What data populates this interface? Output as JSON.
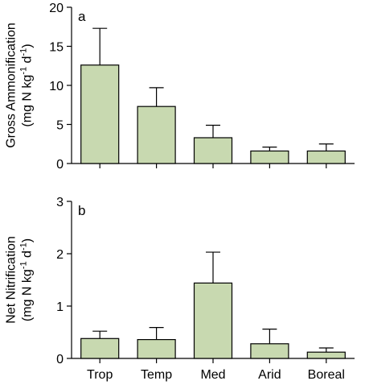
{
  "chart_data": [
    {
      "type": "bar",
      "panel_label": "a",
      "categories": [
        "Trop",
        "Temp",
        "Med",
        "Arid",
        "Boreal"
      ],
      "values": [
        12.6,
        7.3,
        3.3,
        1.6,
        1.6
      ],
      "errors": [
        4.7,
        2.4,
        1.6,
        0.5,
        0.9
      ],
      "ylabel_line1": "Gross Ammonification",
      "ylabel_line2": "(mg N kg-1 d-1)",
      "ylim": [
        0,
        20
      ],
      "yticks": [
        0,
        5,
        10,
        15,
        20
      ],
      "bar_color": "#c8d9b0",
      "show_xtick_labels": false
    },
    {
      "type": "bar",
      "panel_label": "b",
      "categories": [
        "Trop",
        "Temp",
        "Med",
        "Arid",
        "Boreal"
      ],
      "values": [
        0.38,
        0.36,
        1.44,
        0.28,
        0.12
      ],
      "errors": [
        0.14,
        0.23,
        0.59,
        0.28,
        0.08
      ],
      "ylabel_line1": "Net Nitrification",
      "ylabel_line2": "(mg N kg-1 d-1)",
      "ylim": [
        0,
        3
      ],
      "yticks": [
        0,
        1,
        2,
        3
      ],
      "bar_color": "#c8d9b0",
      "show_xtick_labels": true
    }
  ]
}
